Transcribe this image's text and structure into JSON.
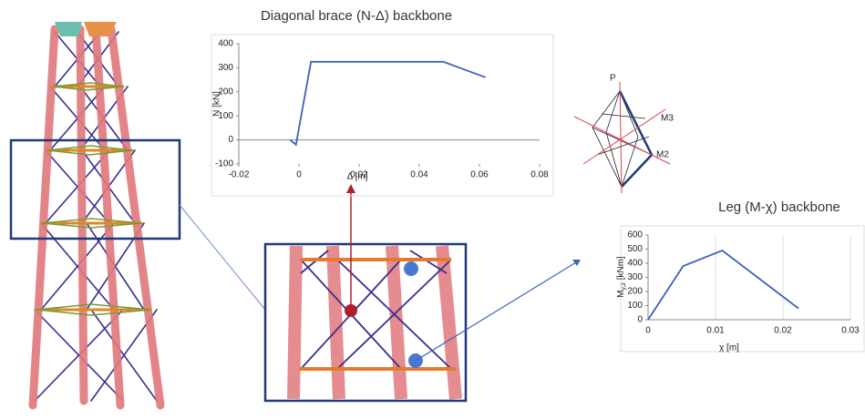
{
  "chart_data": [
    {
      "type": "line",
      "title": "Diagonal brace (N-Δ) backbone",
      "x_label": "Δ [m]",
      "y_label": "N  [kN]",
      "x": [
        -0.003,
        -0.001,
        0.004,
        0.048,
        0.062
      ],
      "series": [
        {
          "color": "#3b63b8",
          "values": [
            0,
            -20,
            325,
            325,
            260
          ]
        }
      ],
      "xlim": [
        -0.02,
        0.08
      ],
      "xticks": [
        -0.02,
        0,
        0.02,
        0.04,
        0.06,
        0.08
      ],
      "ylim": [
        -100,
        400
      ],
      "yticks": [
        -100,
        0,
        100,
        200,
        300,
        400
      ],
      "grid": false
    },
    {
      "type": "line",
      "title": "Leg (M-χ) backbone",
      "x_label": "χ [m]",
      "y_label": [
        "M",
        "y,z",
        " [kNm]"
      ],
      "x": [
        0,
        0.0052,
        0.011,
        0.0223
      ],
      "series": [
        {
          "color": "#3b63b8",
          "values": [
            0,
            380,
            490,
            80
          ]
        }
      ],
      "xlim": [
        0,
        0.03
      ],
      "xticks": [
        0,
        0.01,
        0.02,
        0.03
      ],
      "ylim": [
        0,
        600
      ],
      "yticks": [
        0,
        100,
        200,
        300,
        400,
        500,
        600
      ],
      "grid": true
    }
  ],
  "diagram_labels": [
    "P",
    "M3",
    "M2"
  ]
}
